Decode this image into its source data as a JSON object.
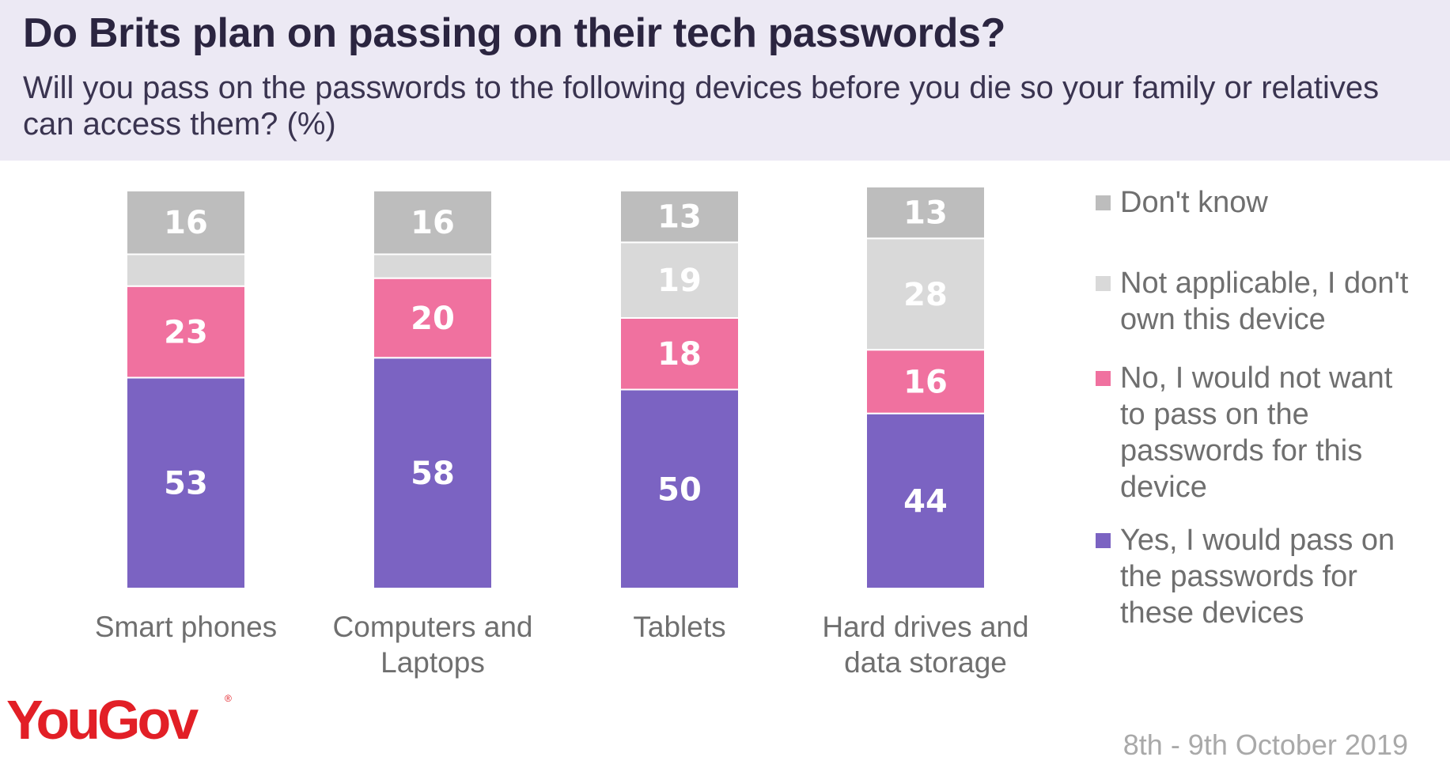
{
  "header": {
    "title": "Do Brits plan on passing on their tech passwords?",
    "subtitle": "Will you pass on the passwords to the following devices before you die so your family or relatives can access them? (%)"
  },
  "chart_data": {
    "type": "bar",
    "stacked": true,
    "orientation": "vertical",
    "title": "Do Brits plan on passing on their tech passwords?",
    "subtitle": "Will you pass on the passwords to the following devices before you die so your family or relatives can access them? (%)",
    "categories": [
      [
        "Smart phones"
      ],
      [
        "Computers and",
        "Laptops"
      ],
      [
        "Tablets"
      ],
      [
        "Hard drives and",
        "data storage"
      ]
    ],
    "ylim": [
      0,
      100
    ],
    "grid": false,
    "legend_position": "right",
    "series": [
      {
        "name": "Yes, I would pass on the passwords for these devices",
        "legend_lines": [
          "Yes, I would pass on",
          "the passwords for",
          "these devices"
        ],
        "color": "#7b63c2",
        "values": [
          53,
          58,
          50,
          44
        ],
        "labels": [
          "53",
          "58",
          "50",
          "44"
        ]
      },
      {
        "name": "No, I would not want to pass on the passwords for this device",
        "legend_lines": [
          "No, I would not want",
          "to pass on the",
          "passwords for this",
          "device"
        ],
        "color": "#f0719f",
        "values": [
          23,
          20,
          18,
          16
        ],
        "labels": [
          "23",
          "20",
          "18",
          "16"
        ]
      },
      {
        "name": "Not applicable, I don't own this device",
        "legend_lines": [
          "Not applicable, I don't",
          "own this device"
        ],
        "color": "#d9d9d9",
        "values": [
          8,
          6,
          19,
          28
        ],
        "labels": [
          "",
          "",
          "19",
          "28"
        ]
      },
      {
        "name": "Don't know",
        "legend_lines": [
          "Don't know"
        ],
        "color": "#bdbdbd",
        "values": [
          16,
          16,
          13,
          13
        ],
        "labels": [
          "16",
          "16",
          "13",
          "13"
        ]
      }
    ]
  },
  "legend_order": [
    3,
    2,
    1,
    0
  ],
  "footer": {
    "date": "8th - 9th October 2019",
    "logo": "YouGov",
    "logo_mark": "®"
  }
}
